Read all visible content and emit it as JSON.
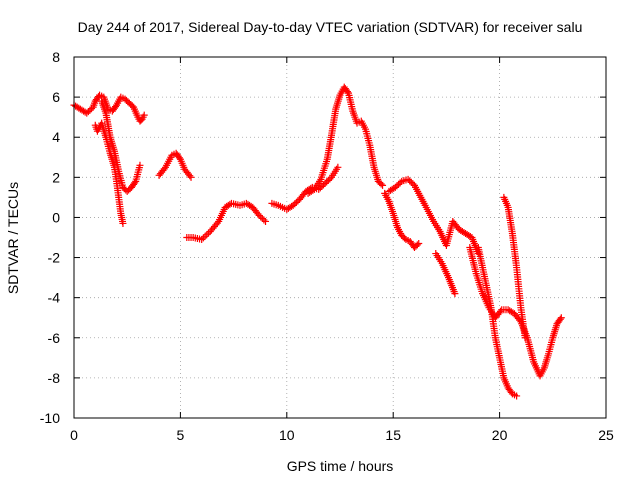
{
  "chart_data": {
    "type": "scatter",
    "title": "Day 244 of 2017, Sidereal Day-to-day VTEC variation (SDTVAR) for receiver salu",
    "xlabel": "GPS time / hours",
    "ylabel": "SDTVAR / TECUs",
    "xlim": [
      0,
      25
    ],
    "ylim": [
      -10,
      8
    ],
    "xticks": [
      0,
      5,
      10,
      15,
      20,
      25
    ],
    "yticks": [
      -10,
      -8,
      -6,
      -4,
      -2,
      0,
      2,
      4,
      6,
      8
    ],
    "grid": true,
    "legend": "none",
    "marker": "plus",
    "color": "#ff0000",
    "series": [
      {
        "x": [
          0.0,
          0.3,
          0.6,
          0.9,
          1.0,
          1.2,
          1.4,
          1.6,
          1.8,
          2.0,
          2.2,
          2.4,
          2.6,
          2.8,
          3.0,
          3.1,
          3.2,
          3.3
        ],
        "y": [
          5.6,
          5.4,
          5.2,
          5.5,
          5.8,
          6.1,
          6.0,
          5.4,
          5.3,
          5.6,
          6.0,
          5.9,
          5.7,
          5.5,
          5.0,
          4.8,
          4.9,
          5.1
        ]
      },
      {
        "x": [
          1.0,
          1.1,
          1.3,
          1.5,
          1.7,
          1.9,
          2.0,
          2.1,
          2.2,
          2.3
        ],
        "y": [
          4.6,
          4.3,
          4.7,
          4.0,
          3.2,
          2.5,
          1.8,
          1.0,
          0.2,
          -0.3
        ]
      },
      {
        "x": [
          1.3,
          1.5,
          1.7,
          1.9,
          2.1,
          2.3,
          2.5,
          2.7,
          2.9,
          3.1
        ],
        "y": [
          5.8,
          5.2,
          4.0,
          3.3,
          2.3,
          1.5,
          1.3,
          1.5,
          1.8,
          2.6
        ]
      },
      {
        "x": [
          4.0,
          4.3,
          4.6,
          4.8,
          5.0,
          5.2,
          5.5
        ],
        "y": [
          2.1,
          2.5,
          3.1,
          3.2,
          2.9,
          2.4,
          2.0
        ]
      },
      {
        "x": [
          5.3,
          5.6,
          6.0,
          6.4,
          6.8,
          7.1,
          7.4,
          7.8,
          8.1,
          8.4,
          8.7,
          9.0
        ],
        "y": [
          -1.0,
          -1.0,
          -1.1,
          -0.7,
          -0.2,
          0.5,
          0.7,
          0.6,
          0.7,
          0.5,
          0.1,
          -0.2
        ]
      },
      {
        "x": [
          9.3,
          9.6,
          10.0,
          10.3,
          10.6,
          10.9,
          11.2,
          11.5,
          11.8,
          12.1,
          12.4
        ],
        "y": [
          0.7,
          0.6,
          0.4,
          0.6,
          0.9,
          1.3,
          1.5,
          1.4,
          1.7,
          2.0,
          2.5
        ]
      },
      {
        "x": [
          11.0,
          11.3,
          11.6,
          11.9,
          12.1,
          12.3,
          12.5,
          12.7,
          12.9,
          13.1,
          13.3,
          13.5,
          13.7,
          13.9,
          14.1,
          14.3,
          14.5
        ],
        "y": [
          1.2,
          1.4,
          1.9,
          2.9,
          4.1,
          5.4,
          6.1,
          6.5,
          6.2,
          5.3,
          4.7,
          4.8,
          4.4,
          3.6,
          2.5,
          1.8,
          1.6
        ]
      },
      {
        "x": [
          14.6,
          14.8,
          15.0,
          15.2,
          15.4,
          15.6,
          15.8,
          16.0,
          16.2
        ],
        "y": [
          1.2,
          0.8,
          0.2,
          -0.5,
          -0.9,
          -1.1,
          -1.2,
          -1.5,
          -1.3
        ]
      },
      {
        "x": [
          14.8,
          15.1,
          15.4,
          15.7,
          16.0,
          16.3,
          16.6,
          16.9,
          17.2,
          17.5,
          17.8,
          18.1,
          18.4,
          18.7,
          19.0
        ],
        "y": [
          1.3,
          1.5,
          1.8,
          1.9,
          1.6,
          1.0,
          0.4,
          -0.2,
          -0.7,
          -1.4,
          -0.2,
          -0.6,
          -0.8,
          -1.0,
          -1.8
        ]
      },
      {
        "x": [
          17.0,
          17.3,
          17.6,
          17.9
        ],
        "y": [
          -1.8,
          -2.3,
          -3.0,
          -3.8
        ]
      },
      {
        "x": [
          19.0,
          19.2,
          19.4,
          19.6,
          19.8,
          20.0,
          20.2,
          20.4,
          20.6,
          20.8
        ],
        "y": [
          -1.5,
          -2.5,
          -3.5,
          -4.5,
          -6.0,
          -7.0,
          -8.0,
          -8.5,
          -8.8,
          -8.9
        ]
      },
      {
        "x": [
          18.6,
          18.9,
          19.2,
          19.5,
          19.8,
          20.1,
          20.4,
          20.7,
          21.0,
          21.3,
          21.6,
          21.9,
          22.1,
          22.3,
          22.5,
          22.7,
          22.9
        ],
        "y": [
          -1.5,
          -2.8,
          -3.8,
          -4.5,
          -5.0,
          -4.6,
          -4.6,
          -4.8,
          -5.2,
          -6.0,
          -7.2,
          -7.9,
          -7.5,
          -6.8,
          -6.0,
          -5.3,
          -5.0
        ]
      },
      {
        "x": [
          20.2,
          20.4,
          20.6,
          20.8,
          21.0,
          21.2
        ],
        "y": [
          1.0,
          0.5,
          -0.8,
          -2.5,
          -4.5,
          -6.0
        ]
      }
    ]
  }
}
